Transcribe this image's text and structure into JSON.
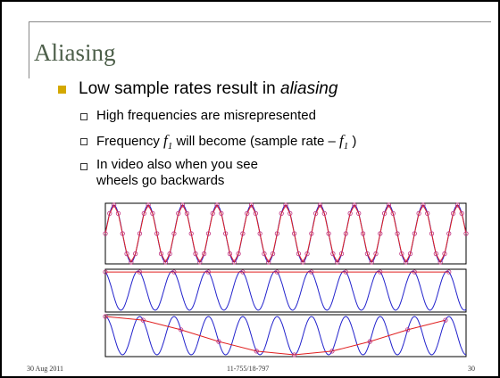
{
  "slide": {
    "title": "Aliasing",
    "bullet": {
      "text": "Low sample rates result in ",
      "emphasis": "aliasing"
    },
    "subbullets": {
      "line1": "High frequencies are misrepresented",
      "line2": [
        "Frequency ",
        "f",
        "1",
        " will become (sample rate – ",
        "f",
        "1",
        " )"
      ],
      "line3": "In video also when you see wheels go backwards"
    },
    "footer": {
      "date": "30 Aug 2011",
      "course": "11-755/18-797",
      "page": "30"
    }
  }
}
